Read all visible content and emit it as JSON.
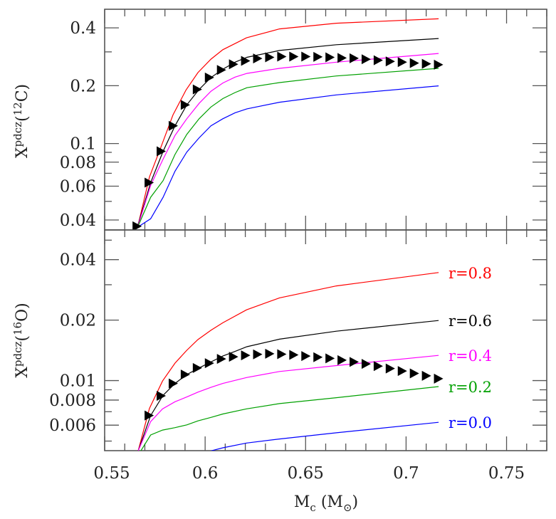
{
  "chart_data": [
    {
      "type": "line",
      "panel": "top",
      "xlim": [
        0.55,
        0.77
      ],
      "ylim": [
        0.0355,
        0.5
      ],
      "yscale": "log",
      "grid": false,
      "ylabel": {
        "symbol": "X",
        "superscript": "pdcz",
        "isotope_mass": "12",
        "element": "C"
      },
      "yticks": [
        0.4,
        0.2,
        0.1,
        0.08,
        0.06,
        0.04
      ],
      "ytick_labels": [
        "0.4",
        "0.2",
        "0.1",
        "0.08",
        "0.06",
        "0.04"
      ],
      "yminor": [
        0.3,
        0.09,
        0.07,
        0.05
      ],
      "series": [
        {
          "r": "0.8",
          "color": "#ff0000",
          "x": [
            0.5664,
            0.5723,
            0.5782,
            0.584,
            0.5905,
            0.5964,
            0.6029,
            0.6088,
            0.6206,
            0.637,
            0.6653,
            0.7162
          ],
          "y": [
            0.0367,
            0.0669,
            0.097,
            0.141,
            0.19,
            0.234,
            0.275,
            0.308,
            0.355,
            0.395,
            0.423,
            0.446
          ]
        },
        {
          "r": "0.6",
          "color": "#000000",
          "x": [
            0.5664,
            0.5729,
            0.5791,
            0.585,
            0.5909,
            0.597,
            0.6029,
            0.6088,
            0.6149,
            0.6208,
            0.637,
            0.6653,
            0.7162
          ],
          "y": [
            0.0371,
            0.0626,
            0.0911,
            0.1237,
            0.1589,
            0.1913,
            0.2206,
            0.2438,
            0.2653,
            0.281,
            0.305,
            0.327,
            0.352
          ]
        },
        {
          "r": "0.4",
          "color": "#ff00ff",
          "x": [
            0.5664,
            0.5729,
            0.5791,
            0.585,
            0.5909,
            0.597,
            0.6029,
            0.6088,
            0.6149,
            0.6208,
            0.637,
            0.6653,
            0.7162
          ],
          "y": [
            0.0367,
            0.0605,
            0.083,
            0.1101,
            0.1346,
            0.1619,
            0.1871,
            0.2066,
            0.2217,
            0.2318,
            0.2462,
            0.2653,
            0.2943
          ]
        },
        {
          "r": "0.2",
          "color": "#00a000",
          "x": [
            0.5664,
            0.5729,
            0.5791,
            0.585,
            0.5909,
            0.597,
            0.6029,
            0.6088,
            0.6149,
            0.6208,
            0.637,
            0.6653,
            0.7162
          ],
          "y": [
            0.0367,
            0.0525,
            0.0641,
            0.0877,
            0.1117,
            0.1346,
            0.155,
            0.1714,
            0.1843,
            0.1952,
            0.2077,
            0.2248,
            0.2462
          ]
        },
        {
          "r": "0.0",
          "color": "#0000ff",
          "x": [
            0.5664,
            0.5729,
            0.5791,
            0.585,
            0.5909,
            0.597,
            0.6029,
            0.6088,
            0.6149,
            0.6208,
            0.637,
            0.6653,
            0.7162
          ],
          "y": [
            0.0367,
            0.0406,
            0.0525,
            0.0718,
            0.0903,
            0.1071,
            0.1237,
            0.1346,
            0.1446,
            0.1516,
            0.1641,
            0.1792,
            0.1996
          ]
        }
      ],
      "markers": {
        "shape": "triangle-right",
        "color": "#000000",
        "x": [
          0.566,
          0.572,
          0.578,
          0.584,
          0.59,
          0.596,
          0.602,
          0.608,
          0.614,
          0.62,
          0.626,
          0.632,
          0.638,
          0.644,
          0.65,
          0.656,
          0.662,
          0.668,
          0.674,
          0.68,
          0.686,
          0.692,
          0.698,
          0.704,
          0.71,
          0.716
        ],
        "y": [
          0.0371,
          0.0626,
          0.0911,
          0.1237,
          0.1589,
          0.1913,
          0.2206,
          0.2417,
          0.2587,
          0.2694,
          0.2771,
          0.281,
          0.2834,
          0.2834,
          0.2834,
          0.2826,
          0.281,
          0.279,
          0.2778,
          0.2747,
          0.2715,
          0.2676,
          0.2653,
          0.2622,
          0.26,
          0.2572
        ]
      }
    },
    {
      "type": "line",
      "panel": "bottom",
      "xlim": [
        0.55,
        0.77
      ],
      "ylim": [
        0.00448,
        0.0562
      ],
      "yscale": "log",
      "grid": false,
      "xlabel": {
        "symbol": "M",
        "subscript": "c",
        "unit_symbol": "M",
        "unit_subscript": "⊙"
      },
      "xticks": [
        0.55,
        0.6,
        0.65,
        0.7,
        0.75
      ],
      "xtick_labels": [
        "0.55",
        "0.6",
        "0.65",
        "0.7",
        "0.75"
      ],
      "ylabel": {
        "symbol": "X",
        "superscript": "pdcz",
        "isotope_mass": "16",
        "element": "O"
      },
      "yticks": [
        0.04,
        0.02,
        0.01,
        0.008,
        0.006
      ],
      "ytick_labels": [
        "0.04",
        "0.02",
        "0.01",
        "0.008",
        "0.006"
      ],
      "yminor": [
        0.05,
        0.03,
        0.009,
        0.007,
        0.005
      ],
      "series": [
        {
          "name": "r=0.8",
          "color": "#ff0000",
          "x": [
            0.5667,
            0.5723,
            0.5788,
            0.585,
            0.5909,
            0.5964,
            0.6029,
            0.6088,
            0.6206,
            0.637,
            0.6653,
            0.7162
          ],
          "y": [
            0.00447,
            0.00727,
            0.00995,
            0.01221,
            0.01415,
            0.016,
            0.0178,
            0.0194,
            0.0225,
            0.0258,
            0.0296,
            0.0345
          ]
        },
        {
          "name": "r=0.6",
          "color": "#000000",
          "x": [
            0.5667,
            0.5729,
            0.5791,
            0.585,
            0.5909,
            0.597,
            0.6029,
            0.6088,
            0.6149,
            0.6208,
            0.637,
            0.6653,
            0.7162
          ],
          "y": [
            0.00447,
            0.0067,
            0.00845,
            0.00968,
            0.01072,
            0.01156,
            0.01238,
            0.01325,
            0.01397,
            0.01475,
            0.01607,
            0.01761,
            0.0199
          ]
        },
        {
          "name": "r=0.4",
          "color": "#ff00ff",
          "x": [
            0.5667,
            0.5729,
            0.5788,
            0.585,
            0.5909,
            0.5964,
            0.6029,
            0.6088,
            0.6206,
            0.637,
            0.6653,
            0.7162
          ],
          "y": [
            0.00447,
            0.00625,
            0.00723,
            0.00785,
            0.00829,
            0.00876,
            0.00925,
            0.00968,
            0.01036,
            0.0111,
            0.01188,
            0.01335
          ]
        },
        {
          "name": "r=0.2",
          "color": "#00a000",
          "x": [
            0.568,
            0.5729,
            0.5788,
            0.585,
            0.5909,
            0.5964,
            0.6029,
            0.6088,
            0.6206,
            0.637,
            0.6653,
            0.7162
          ],
          "y": [
            0.00447,
            0.00536,
            0.00567,
            0.00583,
            0.00602,
            0.0063,
            0.00656,
            0.00682,
            0.00723,
            0.00768,
            0.00822,
            0.00934
          ]
        },
        {
          "name": "r=0.0",
          "color": "#0000ff",
          "x": [
            0.6029,
            0.6088,
            0.6206,
            0.637,
            0.6653,
            0.7162
          ],
          "y": [
            0.00447,
            0.00463,
            0.00489,
            0.00512,
            0.0055,
            0.0062
          ]
        }
      ],
      "markers": {
        "shape": "triangle-right",
        "color": "#000000",
        "x": [
          0.572,
          0.578,
          0.584,
          0.59,
          0.596,
          0.602,
          0.608,
          0.614,
          0.62,
          0.626,
          0.632,
          0.638,
          0.644,
          0.65,
          0.656,
          0.662,
          0.668,
          0.674,
          0.68,
          0.686,
          0.692,
          0.698,
          0.704,
          0.71,
          0.716
        ],
        "y": [
          0.0067,
          0.0084,
          0.00968,
          0.01072,
          0.01156,
          0.01221,
          0.01282,
          0.01314,
          0.01335,
          0.0135,
          0.0136,
          0.01353,
          0.01343,
          0.01325,
          0.01307,
          0.0129,
          0.01264,
          0.01238,
          0.01211,
          0.01181,
          0.01149,
          0.01116,
          0.01086,
          0.01056,
          0.01022
        ]
      }
    }
  ]
}
